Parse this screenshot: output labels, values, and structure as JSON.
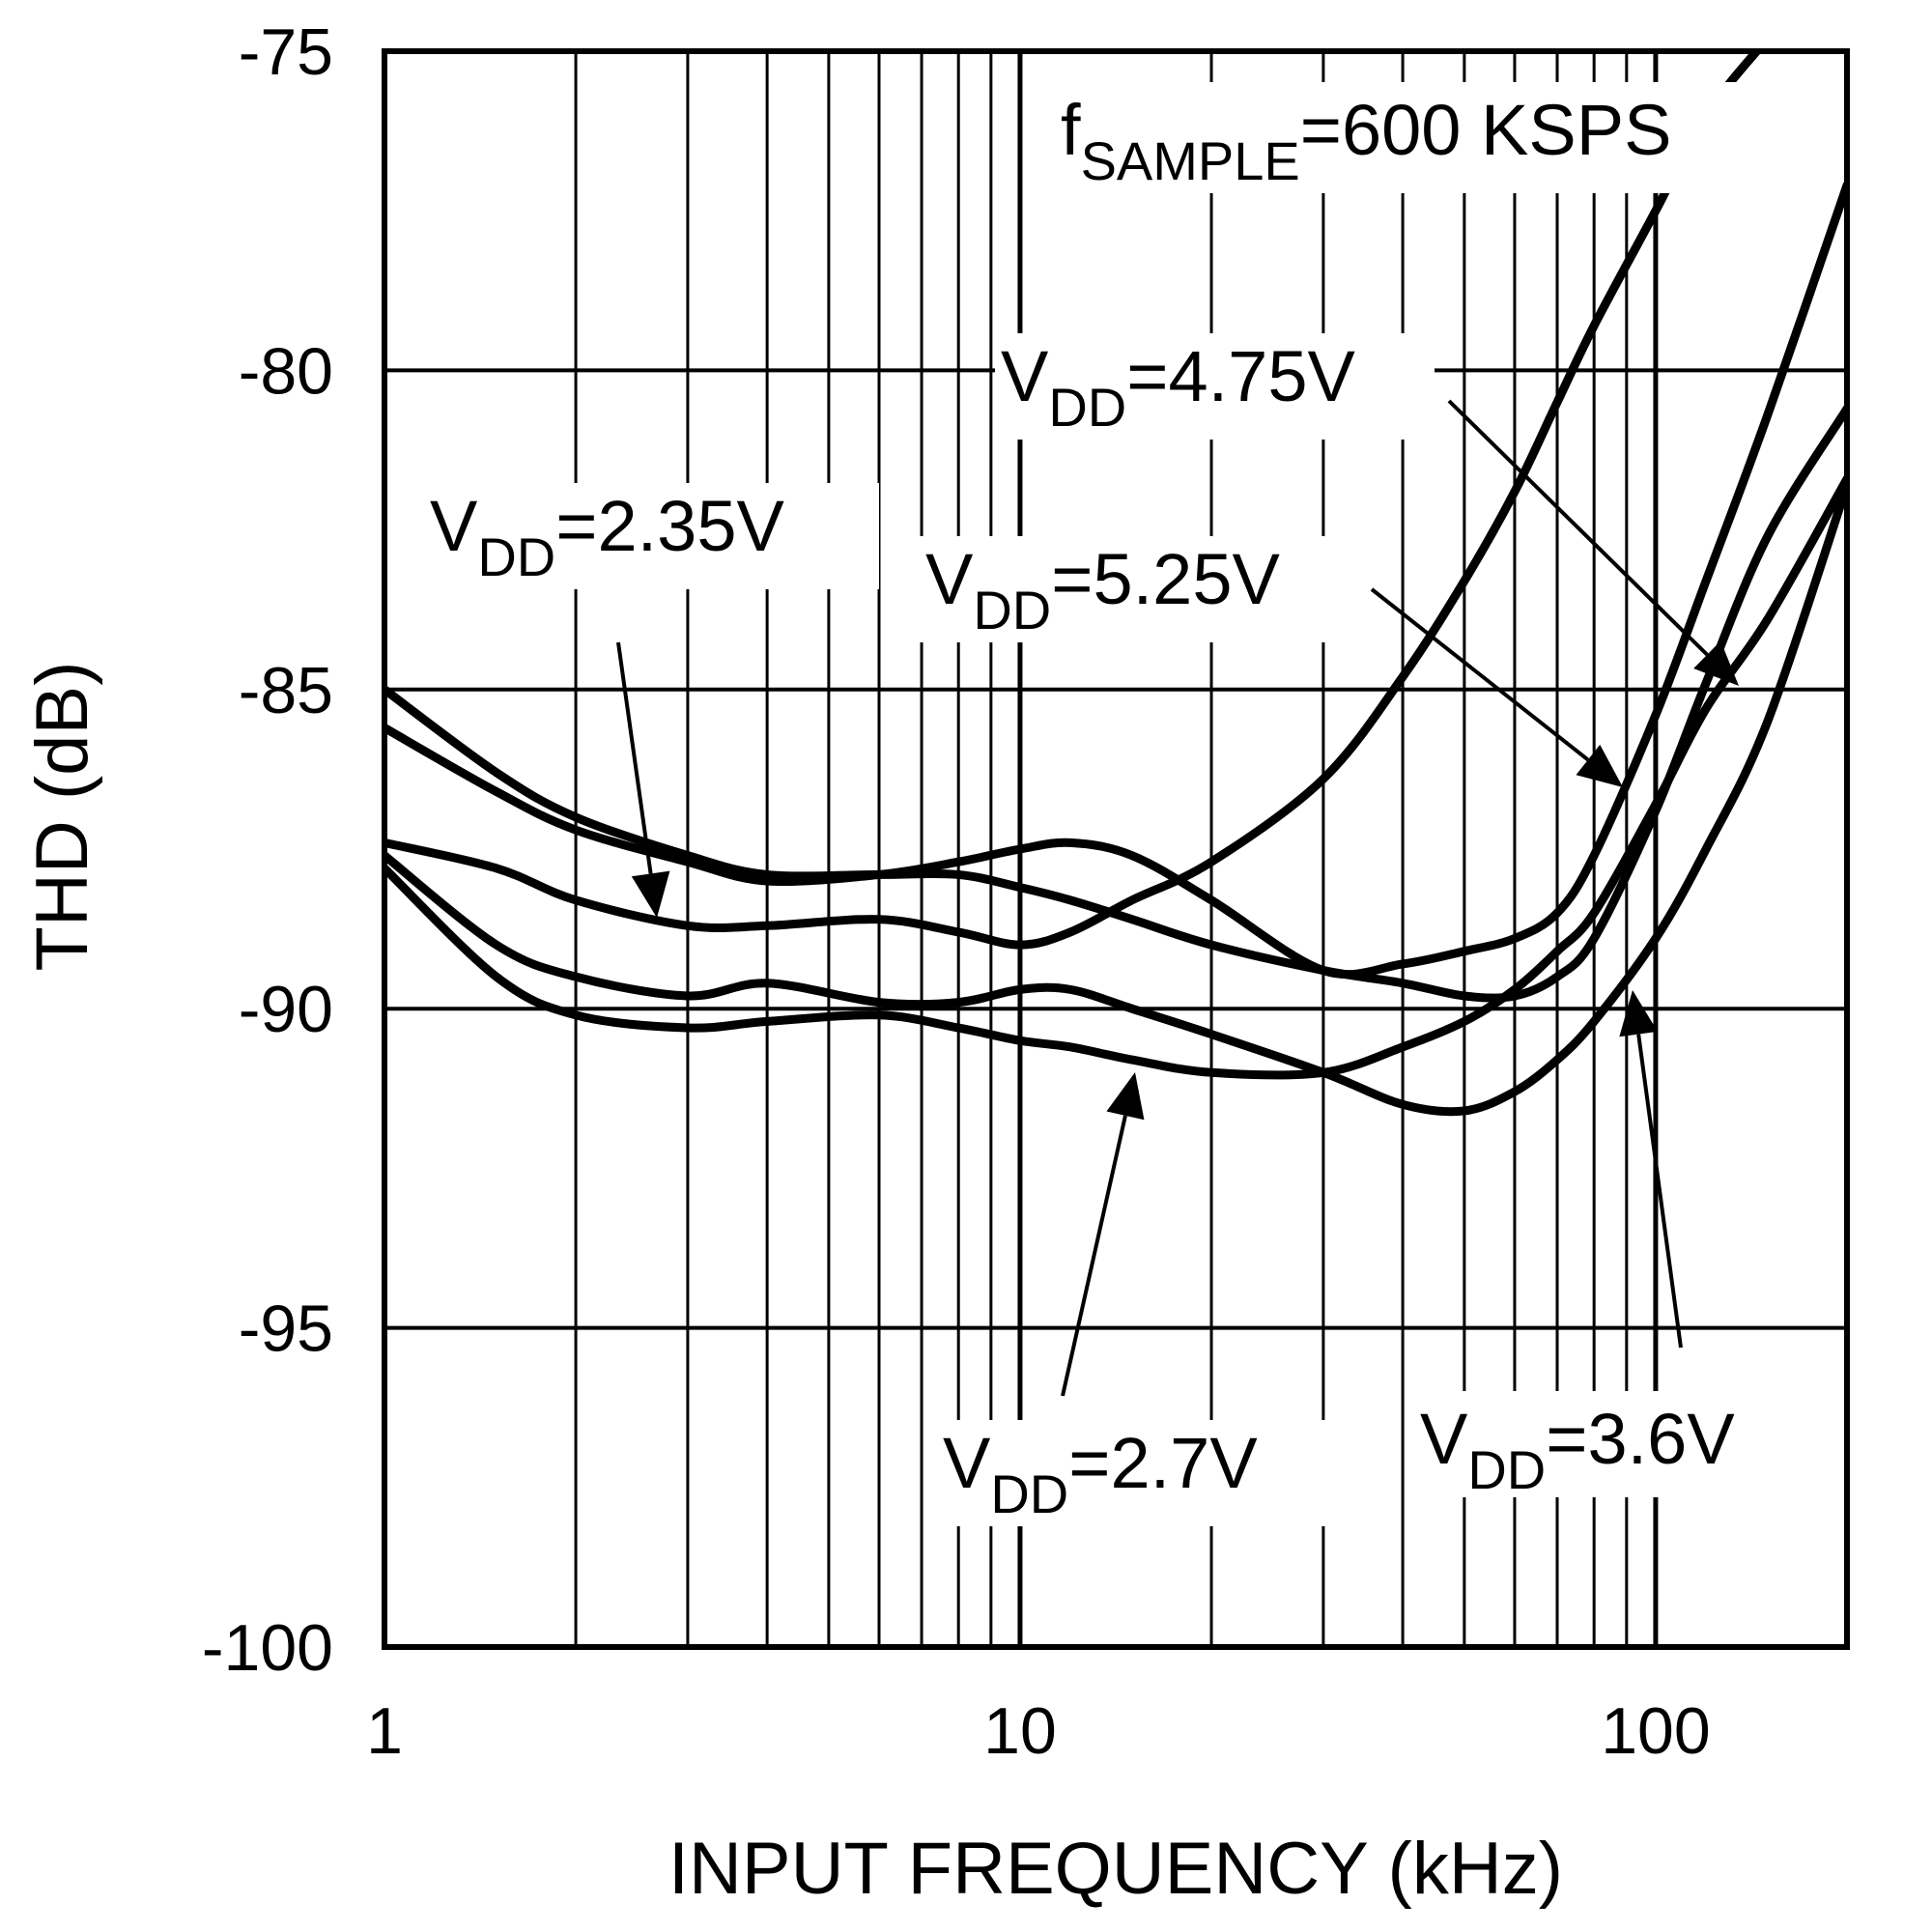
{
  "chart_data": {
    "type": "line",
    "title": "",
    "xlabel": "INPUT FREQUENCY (kHz)",
    "ylabel": "THD (dB)",
    "xscale": "log",
    "xlim": [
      1,
      200
    ],
    "ylim": [
      -100,
      -75
    ],
    "grid": true,
    "x_ticks": [
      1,
      10,
      100
    ],
    "x_tick_labels": [
      "1",
      "10",
      "100"
    ],
    "y_ticks": [
      -75,
      -80,
      -85,
      -90,
      -95,
      -100
    ],
    "y_tick_labels": [
      "-75",
      "-80",
      "-85",
      "-90",
      "-95",
      "-100"
    ],
    "annotations": {
      "sample": {
        "main": "f",
        "sub": "SAMPLE",
        "rest": "=600 KSPS"
      }
    },
    "series": [
      {
        "name": "VDD=2.35V",
        "label_main": "V",
        "label_sub": "DD",
        "label_rest": "=2.35V",
        "x": [
          1,
          1.5,
          2,
          3,
          4,
          6,
          8,
          10,
          12,
          15,
          20,
          30,
          40,
          50,
          60,
          70,
          80,
          100,
          120,
          150
        ],
        "y": [
          -87.4,
          -87.8,
          -88.3,
          -88.7,
          -88.7,
          -88.6,
          -88.8,
          -89.0,
          -88.8,
          -88.3,
          -87.7,
          -86.4,
          -84.8,
          -83.3,
          -81.9,
          -80.5,
          -79.3,
          -77.5,
          -76.0,
          -74.8
        ]
      },
      {
        "name": "VDD=4.75V",
        "label_main": "V",
        "label_sub": "DD",
        "label_rest": "=4.75V",
        "x": [
          1,
          1.5,
          2,
          3,
          4,
          6,
          8,
          10,
          12,
          15,
          20,
          30,
          40,
          50,
          60,
          70,
          80,
          100,
          120,
          150,
          200
        ],
        "y": [
          -85.6,
          -86.6,
          -87.2,
          -87.7,
          -88.0,
          -87.9,
          -87.7,
          -87.5,
          -87.4,
          -87.6,
          -88.3,
          -89.4,
          -89.3,
          -89.1,
          -88.9,
          -88.5,
          -87.6,
          -85.4,
          -83.3,
          -80.7,
          -77.1
        ]
      },
      {
        "name": "VDD=5.25V",
        "label_main": "V",
        "label_sub": "DD",
        "label_rest": "=5.25V",
        "x": [
          1,
          1.5,
          2,
          3,
          4,
          6,
          8,
          10,
          12,
          15,
          20,
          30,
          40,
          50,
          60,
          70,
          80,
          100,
          120,
          150,
          200
        ],
        "y": [
          -85.0,
          -86.3,
          -87.0,
          -87.6,
          -87.9,
          -87.9,
          -87.9,
          -88.1,
          -88.3,
          -88.6,
          -89.0,
          -89.4,
          -89.6,
          -89.8,
          -89.8,
          -89.5,
          -88.9,
          -86.9,
          -84.9,
          -82.6,
          -80.6
        ]
      },
      {
        "name": "VDD=3.6V",
        "label_main": "V",
        "label_sub": "DD",
        "label_rest": "=3.6V",
        "x": [
          1,
          1.5,
          2,
          3,
          4,
          6,
          8,
          10,
          12,
          15,
          20,
          30,
          40,
          50,
          60,
          70,
          80,
          100,
          120,
          150,
          200
        ],
        "y": [
          -87.6,
          -89.0,
          -89.5,
          -89.8,
          -89.6,
          -89.9,
          -89.9,
          -89.7,
          -89.7,
          -90.0,
          -90.4,
          -91.0,
          -91.5,
          -91.6,
          -91.3,
          -90.8,
          -90.2,
          -88.9,
          -87.5,
          -85.5,
          -81.8
        ]
      },
      {
        "name": "VDD=2.7V",
        "label_main": "V",
        "label_sub": "DD",
        "label_rest": "=2.7V",
        "x": [
          1,
          1.5,
          2,
          3,
          4,
          6,
          8,
          10,
          12,
          15,
          20,
          30,
          40,
          50,
          60,
          70,
          80,
          100,
          120,
          150,
          200
        ],
        "y": [
          -87.8,
          -89.5,
          -90.1,
          -90.3,
          -90.2,
          -90.1,
          -90.3,
          -90.5,
          -90.6,
          -90.8,
          -91.0,
          -91.0,
          -90.6,
          -90.2,
          -89.7,
          -89.1,
          -88.5,
          -86.8,
          -85.3,
          -83.9,
          -81.7
        ]
      }
    ]
  }
}
